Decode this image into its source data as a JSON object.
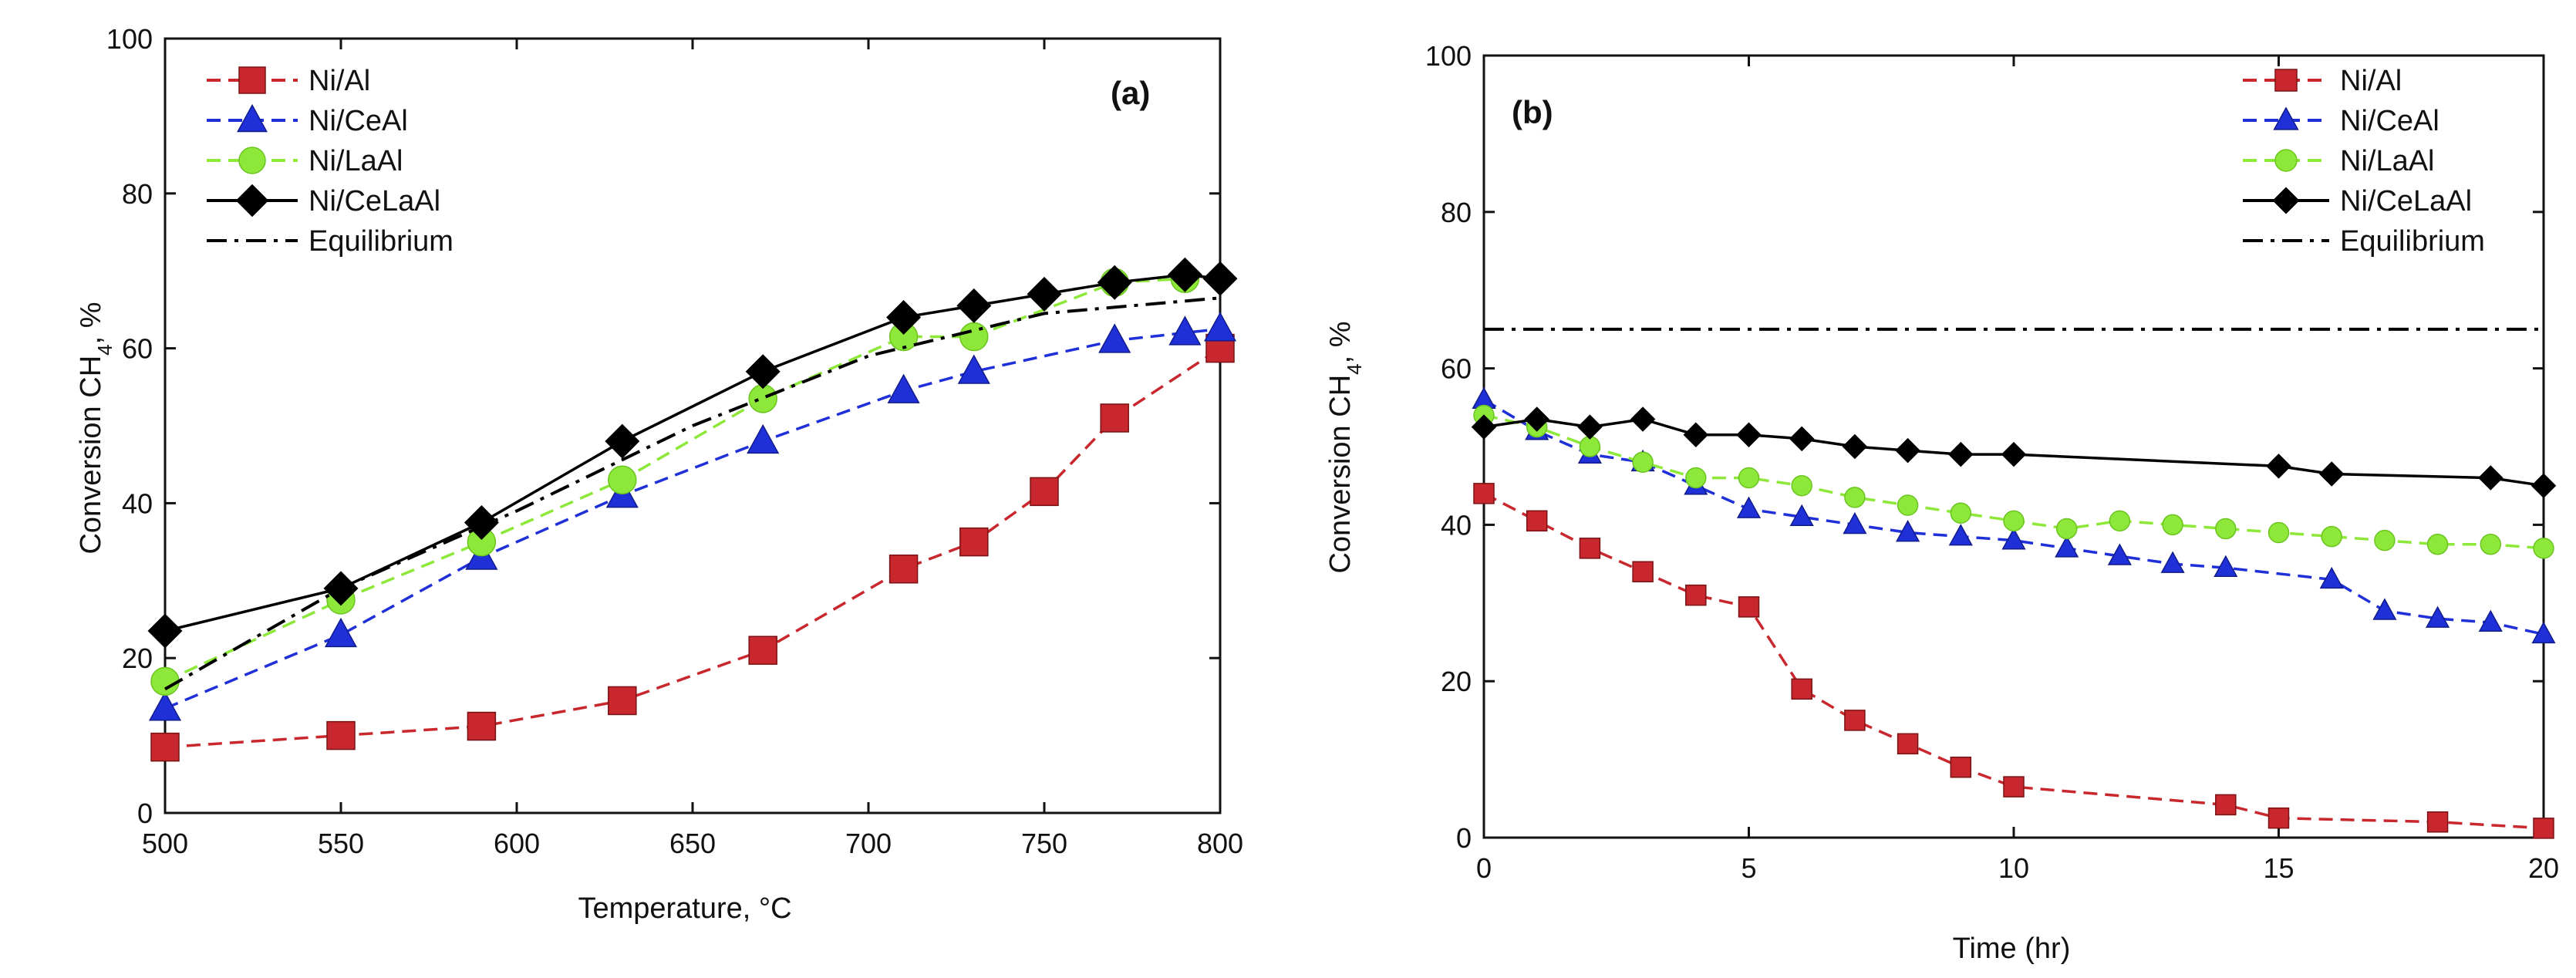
{
  "colors": {
    "ni_al": "#c8282d",
    "ni_ceal": "#2030d8",
    "ni_laal": "#8de83a",
    "ni_celaal": "#000000",
    "equilibrium": "#000000"
  },
  "chart_data": [
    {
      "type": "line",
      "panel_label": "(a)",
      "title": "",
      "xlabel": "Temperature, °C",
      "ylabel_main": "Conversion CH",
      "ylabel_sub": "4",
      "ylabel_tail": ", %",
      "xlim": [
        500,
        800
      ],
      "ylim": [
        0,
        100
      ],
      "xticks": [
        "500",
        "550",
        "600",
        "650",
        "700",
        "750",
        "800"
      ],
      "yticks": [
        "0",
        "20",
        "40",
        "60",
        "80",
        "100"
      ],
      "legend_position": "top-left",
      "series": [
        {
          "name": "Ni/Al",
          "marker": "square",
          "dash": "dashed",
          "x": [
            500,
            550,
            590,
            630,
            670,
            710,
            730,
            750,
            770,
            800
          ],
          "y": [
            8.5,
            10,
            11.2,
            14.5,
            21,
            31.5,
            35,
            41.5,
            51,
            60
          ]
        },
        {
          "name": "Ni/CeAl",
          "marker": "triangle",
          "dash": "dashed",
          "x": [
            500,
            550,
            590,
            630,
            670,
            710,
            730,
            770,
            790,
            800
          ],
          "y": [
            13.5,
            23,
            33,
            41,
            48,
            54.5,
            57,
            61,
            62,
            62.5
          ]
        },
        {
          "name": "Ni/LaAl",
          "marker": "circle",
          "dash": "dashed",
          "x": [
            500,
            550,
            590,
            630,
            670,
            710,
            730,
            770,
            790
          ],
          "y": [
            17,
            27.5,
            35,
            43,
            53.5,
            61.5,
            61.5,
            68.5,
            69
          ]
        },
        {
          "name": "Ni/CeLaAl",
          "marker": "diamond",
          "dash": "solid",
          "x": [
            500,
            550,
            590,
            630,
            670,
            710,
            730,
            750,
            770,
            790,
            800
          ],
          "y": [
            23.5,
            29,
            37.5,
            48,
            57,
            64,
            65.5,
            67,
            68.5,
            69.5,
            69
          ]
        },
        {
          "name": "Equilibrium",
          "marker": "none",
          "dash": "dashdot",
          "x": [
            500,
            550,
            600,
            650,
            700,
            750,
            800
          ],
          "y": [
            16,
            29,
            39,
            50,
            59,
            64.5,
            66.5
          ]
        }
      ]
    },
    {
      "type": "line",
      "panel_label": "(b)",
      "title": "",
      "xlabel": "Time (hr)",
      "ylabel_main": "Conversion CH",
      "ylabel_sub": "4",
      "ylabel_tail": ", %",
      "xlim": [
        0,
        20
      ],
      "ylim": [
        0,
        100
      ],
      "xticks": [
        "0",
        "5",
        "10",
        "15",
        "20"
      ],
      "yticks": [
        "0",
        "20",
        "40",
        "60",
        "80",
        "100"
      ],
      "legend_position": "top-right",
      "series": [
        {
          "name": "Ni/Al",
          "marker": "square",
          "dash": "dashed",
          "x": [
            0,
            1,
            2,
            3,
            4,
            5,
            6,
            7,
            8,
            9,
            10,
            14,
            15,
            18,
            20
          ],
          "y": [
            44,
            40.5,
            37,
            34,
            31,
            29.5,
            19,
            15,
            12,
            9,
            6.5,
            4.2,
            2.5,
            2,
            1.2
          ]
        },
        {
          "name": "Ni/CeAl",
          "marker": "triangle",
          "dash": "dashed",
          "x": [
            0,
            1,
            2,
            3,
            4,
            5,
            6,
            7,
            8,
            9,
            10,
            11,
            12,
            13,
            14,
            16,
            17,
            18,
            19,
            20
          ],
          "y": [
            56,
            52,
            49,
            48,
            45,
            42,
            41,
            40,
            39,
            38.5,
            38,
            37,
            36,
            35,
            34.5,
            33,
            29,
            28,
            27.5,
            26
          ]
        },
        {
          "name": "Ni/LaAl",
          "marker": "circle",
          "dash": "dashed",
          "x": [
            0,
            1,
            2,
            3,
            4,
            5,
            6,
            7,
            8,
            9,
            10,
            11,
            12,
            13,
            14,
            15,
            16,
            17,
            18,
            19,
            20
          ],
          "y": [
            54,
            52.5,
            50,
            48,
            46,
            46,
            45,
            43.5,
            42.5,
            41.5,
            40.5,
            39.5,
            40.5,
            40,
            39.5,
            39,
            38.5,
            38,
            37.5,
            37.5,
            37
          ]
        },
        {
          "name": "Ni/CeLaAl",
          "marker": "diamond",
          "dash": "solid",
          "x": [
            0,
            1,
            2,
            3,
            4,
            5,
            6,
            7,
            8,
            9,
            10,
            15,
            16,
            19,
            20
          ],
          "y": [
            52.5,
            53.5,
            52.5,
            53.5,
            51.5,
            51.5,
            51,
            50,
            49.5,
            49,
            49,
            47.5,
            46.5,
            46,
            45
          ]
        },
        {
          "name": "Equilibrium",
          "marker": "none",
          "dash": "dashdot",
          "x": [
            0,
            20
          ],
          "y": [
            65,
            65
          ]
        }
      ]
    }
  ]
}
